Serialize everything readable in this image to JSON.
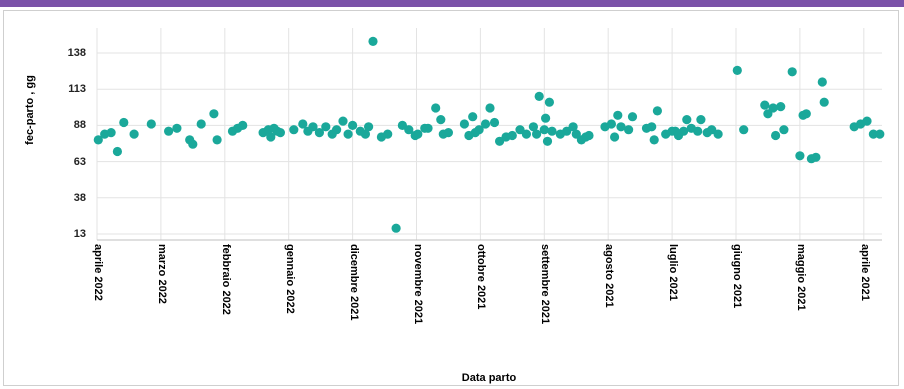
{
  "chart_data": {
    "type": "scatter",
    "title": "",
    "xlabel": "Data parto",
    "ylabel": "fec-parto , gg",
    "y_ticks": [
      13,
      38,
      63,
      88,
      113,
      138
    ],
    "ylim": [
      13,
      150
    ],
    "x_tick_labels": [
      "aprile 2022",
      "marzo 2022",
      "febbraio 2022",
      "gennaio 2022",
      "dicembre 2021",
      "novembre 2021",
      "ottobre 2021",
      "settembre 2021",
      "agosto 2021",
      "luglio 2021",
      "giugno 2021",
      "maggio 2021",
      "aprile 2021"
    ],
    "x_axis_note": "x values are tick-slot positions: 0 = aprile 2022 … 12 = aprile 2021",
    "xlim": [
      0,
      12.28
    ],
    "grid": true,
    "marker_color": "#1aa89a",
    "points": [
      [
        0.02,
        78
      ],
      [
        0.12,
        82
      ],
      [
        0.22,
        83
      ],
      [
        0.32,
        70
      ],
      [
        0.42,
        90
      ],
      [
        0.58,
        82
      ],
      [
        0.85,
        89
      ],
      [
        1.12,
        84
      ],
      [
        1.25,
        86
      ],
      [
        1.45,
        78
      ],
      [
        1.5,
        75
      ],
      [
        1.63,
        89
      ],
      [
        1.83,
        96
      ],
      [
        1.88,
        78
      ],
      [
        2.12,
        84
      ],
      [
        2.2,
        86
      ],
      [
        2.28,
        88
      ],
      [
        2.6,
        83
      ],
      [
        2.68,
        85
      ],
      [
        2.72,
        80
      ],
      [
        2.77,
        86
      ],
      [
        2.82,
        84
      ],
      [
        2.87,
        83
      ],
      [
        3.08,
        85
      ],
      [
        3.22,
        89
      ],
      [
        3.3,
        84
      ],
      [
        3.38,
        87
      ],
      [
        3.48,
        83
      ],
      [
        3.58,
        87
      ],
      [
        3.68,
        82
      ],
      [
        3.75,
        85
      ],
      [
        3.85,
        91
      ],
      [
        3.93,
        82
      ],
      [
        4.0,
        88
      ],
      [
        4.12,
        84
      ],
      [
        4.2,
        82
      ],
      [
        4.25,
        87
      ],
      [
        4.32,
        146
      ],
      [
        4.45,
        80
      ],
      [
        4.55,
        82
      ],
      [
        4.68,
        17
      ],
      [
        4.78,
        88
      ],
      [
        4.88,
        85
      ],
      [
        4.98,
        81
      ],
      [
        5.02,
        82
      ],
      [
        5.13,
        86
      ],
      [
        5.18,
        86
      ],
      [
        5.3,
        100
      ],
      [
        5.38,
        92
      ],
      [
        5.42,
        82
      ],
      [
        5.5,
        83
      ],
      [
        5.75,
        89
      ],
      [
        5.82,
        81
      ],
      [
        5.88,
        94
      ],
      [
        5.92,
        83
      ],
      [
        5.98,
        85
      ],
      [
        6.08,
        89
      ],
      [
        6.15,
        100
      ],
      [
        6.22,
        90
      ],
      [
        6.3,
        77
      ],
      [
        6.4,
        80
      ],
      [
        6.5,
        81
      ],
      [
        6.62,
        85
      ],
      [
        6.72,
        82
      ],
      [
        6.83,
        87
      ],
      [
        6.88,
        82
      ],
      [
        6.92,
        108
      ],
      [
        7.0,
        85
      ],
      [
        7.02,
        93
      ],
      [
        7.05,
        77
      ],
      [
        7.08,
        104
      ],
      [
        7.12,
        84
      ],
      [
        7.25,
        82
      ],
      [
        7.35,
        84
      ],
      [
        7.45,
        87
      ],
      [
        7.5,
        82
      ],
      [
        7.58,
        78
      ],
      [
        7.65,
        80
      ],
      [
        7.7,
        81
      ],
      [
        7.95,
        87
      ],
      [
        8.05,
        89
      ],
      [
        8.1,
        80
      ],
      [
        8.15,
        95
      ],
      [
        8.2,
        87
      ],
      [
        8.32,
        85
      ],
      [
        8.38,
        94
      ],
      [
        8.6,
        86
      ],
      [
        8.68,
        87
      ],
      [
        8.72,
        78
      ],
      [
        8.77,
        98
      ],
      [
        8.9,
        82
      ],
      [
        9.0,
        84
      ],
      [
        9.05,
        84
      ],
      [
        9.1,
        81
      ],
      [
        9.18,
        84
      ],
      [
        9.23,
        92
      ],
      [
        9.3,
        86
      ],
      [
        9.4,
        84
      ],
      [
        9.45,
        92
      ],
      [
        9.55,
        83
      ],
      [
        9.62,
        85
      ],
      [
        9.72,
        82
      ],
      [
        10.02,
        126
      ],
      [
        10.12,
        85
      ],
      [
        10.45,
        102
      ],
      [
        10.5,
        96
      ],
      [
        10.58,
        100
      ],
      [
        10.62,
        81
      ],
      [
        10.7,
        101
      ],
      [
        10.75,
        85
      ],
      [
        10.88,
        125
      ],
      [
        11.0,
        67
      ],
      [
        11.05,
        95
      ],
      [
        11.1,
        96
      ],
      [
        11.18,
        65
      ],
      [
        11.25,
        66
      ],
      [
        11.35,
        118
      ],
      [
        11.38,
        104
      ],
      [
        11.85,
        87
      ],
      [
        11.95,
        89
      ],
      [
        12.05,
        91
      ],
      [
        12.15,
        82
      ],
      [
        12.25,
        82
      ]
    ]
  }
}
